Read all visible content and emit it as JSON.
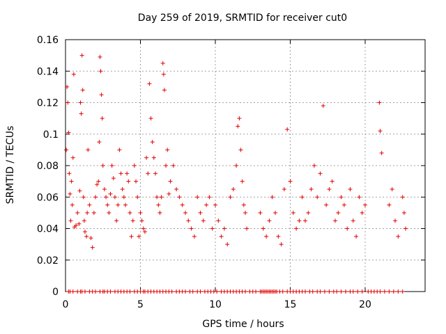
{
  "chart_data": {
    "type": "scatter",
    "title": "Day 259 of 2019, SRMTID for receiver cut0",
    "xlabel": "GPS time / hours",
    "ylabel": "SRMTID / TECUs",
    "xlim": [
      0,
      24
    ],
    "ylim": [
      0,
      0.16
    ],
    "xticks": [
      0,
      5,
      10,
      15,
      20
    ],
    "xtick_labels": [
      "0",
      "5",
      "10",
      "15",
      "20"
    ],
    "yticks": [
      0,
      0.02,
      0.04,
      0.06,
      0.08,
      0.1,
      0.12,
      0.14,
      0.16
    ],
    "ytick_labels": [
      "0",
      "0.02",
      "0.04",
      "0.06",
      "0.08",
      "0.1",
      "0.12",
      "0.14",
      "0.16"
    ],
    "grid": true,
    "marker": "+",
    "color": "#e00000",
    "series": [
      {
        "name": "SRMTID",
        "points": [
          [
            0.05,
            0.09
          ],
          [
            0.1,
            0.13
          ],
          [
            0.15,
            0.12
          ],
          [
            0.2,
            0.101
          ],
          [
            0.25,
            0.075
          ],
          [
            0.3,
            0.062
          ],
          [
            0.35,
            0.045
          ],
          [
            0.4,
            0.07
          ],
          [
            0.45,
            0.055
          ],
          [
            0.5,
            0.085
          ],
          [
            0.55,
            0.138
          ],
          [
            0.6,
            0.041
          ],
          [
            0.7,
            0.042
          ],
          [
            0.8,
            0.05
          ],
          [
            0.9,
            0.043
          ],
          [
            0.95,
            0.064
          ],
          [
            1.0,
            0.12
          ],
          [
            1.05,
            0.113
          ],
          [
            1.1,
            0.15
          ],
          [
            1.15,
            0.128
          ],
          [
            1.2,
            0.06
          ],
          [
            1.25,
            0.045
          ],
          [
            1.3,
            0.038
          ],
          [
            1.4,
            0.035
          ],
          [
            1.45,
            0.05
          ],
          [
            1.5,
            0.09
          ],
          [
            1.6,
            0.055
          ],
          [
            1.7,
            0.034
          ],
          [
            1.8,
            0.028
          ],
          [
            1.9,
            0.05
          ],
          [
            2.0,
            0.06
          ],
          [
            2.1,
            0.068
          ],
          [
            2.2,
            0.07
          ],
          [
            2.25,
            0.095
          ],
          [
            2.3,
            0.149
          ],
          [
            2.35,
            0.14
          ],
          [
            2.4,
            0.125
          ],
          [
            2.45,
            0.11
          ],
          [
            2.5,
            0.08
          ],
          [
            2.6,
            0.065
          ],
          [
            2.7,
            0.06
          ],
          [
            2.8,
            0.055
          ],
          [
            2.9,
            0.05
          ],
          [
            3.0,
            0.062
          ],
          [
            3.1,
            0.08
          ],
          [
            3.2,
            0.072
          ],
          [
            3.3,
            0.06
          ],
          [
            3.4,
            0.045
          ],
          [
            3.5,
            0.055
          ],
          [
            3.6,
            0.09
          ],
          [
            3.7,
            0.075
          ],
          [
            3.8,
            0.065
          ],
          [
            3.9,
            0.06
          ],
          [
            4.0,
            0.055
          ],
          [
            4.1,
            0.075
          ],
          [
            4.2,
            0.07
          ],
          [
            4.3,
            0.05
          ],
          [
            4.4,
            0.035
          ],
          [
            4.5,
            0.045
          ],
          [
            4.6,
            0.08
          ],
          [
            4.7,
            0.07
          ],
          [
            4.8,
            0.06
          ],
          [
            4.9,
            0.035
          ],
          [
            5.0,
            0.05
          ],
          [
            5.1,
            0.045
          ],
          [
            5.2,
            0.04
          ],
          [
            5.3,
            0.038
          ],
          [
            5.4,
            0.085
          ],
          [
            5.5,
            0.075
          ],
          [
            5.6,
            0.132
          ],
          [
            5.7,
            0.11
          ],
          [
            5.8,
            0.095
          ],
          [
            5.9,
            0.085
          ],
          [
            6.0,
            0.075
          ],
          [
            6.1,
            0.06
          ],
          [
            6.2,
            0.055
          ],
          [
            6.3,
            0.05
          ],
          [
            6.4,
            0.06
          ],
          [
            6.5,
            0.145
          ],
          [
            6.55,
            0.138
          ],
          [
            6.6,
            0.128
          ],
          [
            6.7,
            0.08
          ],
          [
            6.8,
            0.09
          ],
          [
            6.9,
            0.062
          ],
          [
            7.0,
            0.07
          ],
          [
            7.2,
            0.08
          ],
          [
            7.4,
            0.065
          ],
          [
            7.6,
            0.06
          ],
          [
            7.8,
            0.055
          ],
          [
            8.0,
            0.05
          ],
          [
            8.2,
            0.045
          ],
          [
            8.4,
            0.04
          ],
          [
            8.6,
            0.035
          ],
          [
            8.8,
            0.06
          ],
          [
            9.0,
            0.05
          ],
          [
            9.2,
            0.045
          ],
          [
            9.4,
            0.055
          ],
          [
            9.6,
            0.06
          ],
          [
            9.8,
            0.04
          ],
          [
            10.0,
            0.055
          ],
          [
            10.2,
            0.045
          ],
          [
            10.4,
            0.035
          ],
          [
            10.6,
            0.04
          ],
          [
            10.8,
            0.03
          ],
          [
            11.0,
            0.06
          ],
          [
            11.2,
            0.065
          ],
          [
            11.4,
            0.08
          ],
          [
            11.5,
            0.105
          ],
          [
            11.6,
            0.11
          ],
          [
            11.7,
            0.09
          ],
          [
            11.8,
            0.07
          ],
          [
            11.9,
            0.055
          ],
          [
            12.0,
            0.05
          ],
          [
            12.1,
            0.04
          ],
          [
            13.0,
            0.05
          ],
          [
            13.2,
            0.04
          ],
          [
            13.4,
            0.035
          ],
          [
            13.6,
            0.045
          ],
          [
            13.8,
            0.06
          ],
          [
            14.0,
            0.05
          ],
          [
            14.2,
            0.035
          ],
          [
            14.4,
            0.03
          ],
          [
            14.6,
            0.065
          ],
          [
            14.8,
            0.103
          ],
          [
            15.0,
            0.07
          ],
          [
            15.2,
            0.05
          ],
          [
            15.4,
            0.04
          ],
          [
            15.6,
            0.045
          ],
          [
            15.8,
            0.06
          ],
          [
            16.0,
            0.045
          ],
          [
            16.2,
            0.05
          ],
          [
            16.4,
            0.065
          ],
          [
            16.6,
            0.08
          ],
          [
            16.8,
            0.06
          ],
          [
            17.0,
            0.075
          ],
          [
            17.2,
            0.118
          ],
          [
            17.4,
            0.055
          ],
          [
            17.6,
            0.065
          ],
          [
            17.8,
            0.07
          ],
          [
            18.0,
            0.045
          ],
          [
            18.2,
            0.05
          ],
          [
            18.4,
            0.06
          ],
          [
            18.6,
            0.055
          ],
          [
            18.8,
            0.04
          ],
          [
            19.0,
            0.065
          ],
          [
            19.2,
            0.045
          ],
          [
            19.4,
            0.035
          ],
          [
            19.6,
            0.06
          ],
          [
            19.8,
            0.05
          ],
          [
            20.0,
            0.055
          ],
          [
            20.95,
            0.12
          ],
          [
            21.0,
            0.102
          ],
          [
            21.1,
            0.088
          ],
          [
            21.6,
            0.055
          ],
          [
            21.8,
            0.065
          ],
          [
            22.0,
            0.045
          ],
          [
            22.2,
            0.035
          ],
          [
            22.5,
            0.06
          ],
          [
            22.6,
            0.05
          ],
          [
            22.7,
            0.04
          ]
        ],
        "zero_points_x": [
          0.2,
          0.3,
          0.5,
          0.8,
          1.0,
          1.1,
          1.3,
          1.6,
          1.8,
          2.0,
          2.3,
          2.5,
          2.6,
          2.8,
          3.0,
          3.3,
          3.5,
          3.7,
          3.9,
          4.1,
          4.3,
          4.6,
          4.8,
          5.0,
          5.2,
          5.3,
          5.5,
          5.7,
          5.9,
          6.1,
          6.3,
          6.5,
          6.7,
          6.9,
          7.1,
          7.4,
          7.6,
          7.8,
          8.0,
          8.3,
          8.5,
          8.8,
          9.0,
          9.3,
          9.5,
          9.7,
          9.9,
          10.1,
          10.4,
          10.6,
          10.8,
          11.0,
          11.2,
          11.4,
          11.6,
          11.8,
          12.0,
          12.3,
          12.5,
          12.7,
          13.0,
          13.1,
          13.2,
          13.3,
          13.4,
          13.5,
          13.6,
          13.7,
          13.8,
          13.9,
          14.0,
          14.1,
          14.3,
          14.5,
          14.8,
          15.0,
          15.2,
          15.4,
          15.6,
          15.8,
          16.0,
          16.3,
          16.5,
          16.8,
          17.0,
          17.3,
          17.6,
          17.9,
          18.1,
          18.4,
          18.7,
          19.0,
          19.2,
          19.5,
          19.8,
          20.2,
          20.4,
          20.6,
          20.8,
          21.0,
          21.3,
          21.6,
          21.9,
          22.2,
          22.5
        ]
      }
    ]
  }
}
